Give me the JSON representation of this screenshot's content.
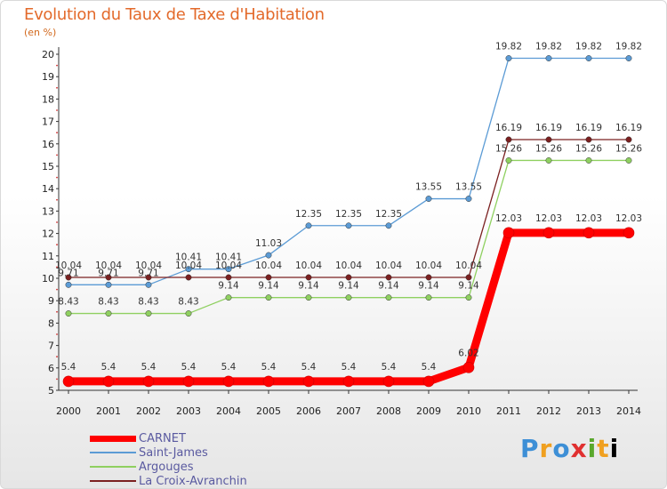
{
  "title": "Evolution du Taux de Taxe d'Habitation",
  "subtitle": "(en %)",
  "logo": [
    "P",
    "r",
    "o",
    "x",
    "i",
    "t",
    "i"
  ],
  "chart_data": {
    "type": "line",
    "title": "Evolution du Taux de Taxe d'Habitation",
    "ylabel": "(en %)",
    "xlabel": "",
    "ylim": [
      5,
      20
    ],
    "yticks": [
      5,
      6,
      7,
      8,
      9,
      10,
      11,
      12,
      13,
      14,
      15,
      16,
      17,
      18,
      19,
      20
    ],
    "x": [
      "2000",
      "2001",
      "2002",
      "2003",
      "2004",
      "2005",
      "2006",
      "2007",
      "2008",
      "2009",
      "2010",
      "2011",
      "2012",
      "2013",
      "2014"
    ],
    "grid": false,
    "legend_position": "bottom-left",
    "series": [
      {
        "name": "CARNET",
        "color": "#ff0000",
        "values": [
          5.4,
          5.4,
          5.4,
          5.4,
          5.4,
          5.4,
          5.4,
          5.4,
          5.4,
          5.4,
          6.02,
          12.03,
          12.03,
          12.03,
          12.03
        ]
      },
      {
        "name": "Saint-James",
        "color": "#5b9bd5",
        "values": [
          9.71,
          9.71,
          9.71,
          10.41,
          10.41,
          11.03,
          12.35,
          12.35,
          12.35,
          13.55,
          13.55,
          19.82,
          19.82,
          19.82,
          19.82
        ]
      },
      {
        "name": "Argouges",
        "color": "#8fd060",
        "values": [
          8.43,
          8.43,
          8.43,
          8.43,
          9.14,
          9.14,
          9.14,
          9.14,
          9.14,
          9.14,
          9.14,
          15.26,
          15.26,
          15.26,
          15.26
        ]
      },
      {
        "name": "La Croix-Avranchin",
        "color": "#7b2020",
        "values": [
          10.04,
          10.04,
          10.04,
          10.04,
          10.04,
          10.04,
          10.04,
          10.04,
          10.04,
          10.04,
          10.04,
          16.19,
          16.19,
          16.19,
          16.19
        ]
      }
    ]
  }
}
